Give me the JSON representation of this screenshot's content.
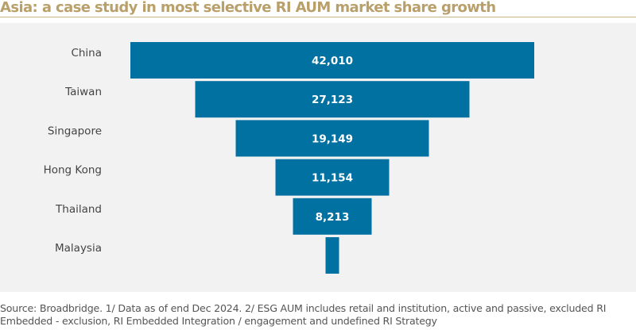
{
  "chart_data": {
    "type": "bar",
    "orientation": "funnel",
    "title": "Asia: a case study in most selective RI AUM market share growth",
    "categories": [
      "China",
      "Taiwan",
      "Singapore",
      "Hong Kong",
      "Thailand",
      "Malaysia"
    ],
    "values": [
      42010,
      27123,
      19149,
      11154,
      8213,
      1400
    ],
    "data_labels": [
      "42,010",
      "27,123",
      "19,149",
      "11,154",
      "8,213",
      ""
    ],
    "bar_color": "#0071a1",
    "label_color": "#ffffff",
    "grid": false,
    "legend": "none"
  },
  "source": "Source: Broadbridge. 1/ Data as of end Dec 2024. 2/ ESG AUM includes retail and institution, active and passive, excluded RI Embedded - exclusion, RI Embedded Integration / engagement and undefined RI Strategy"
}
